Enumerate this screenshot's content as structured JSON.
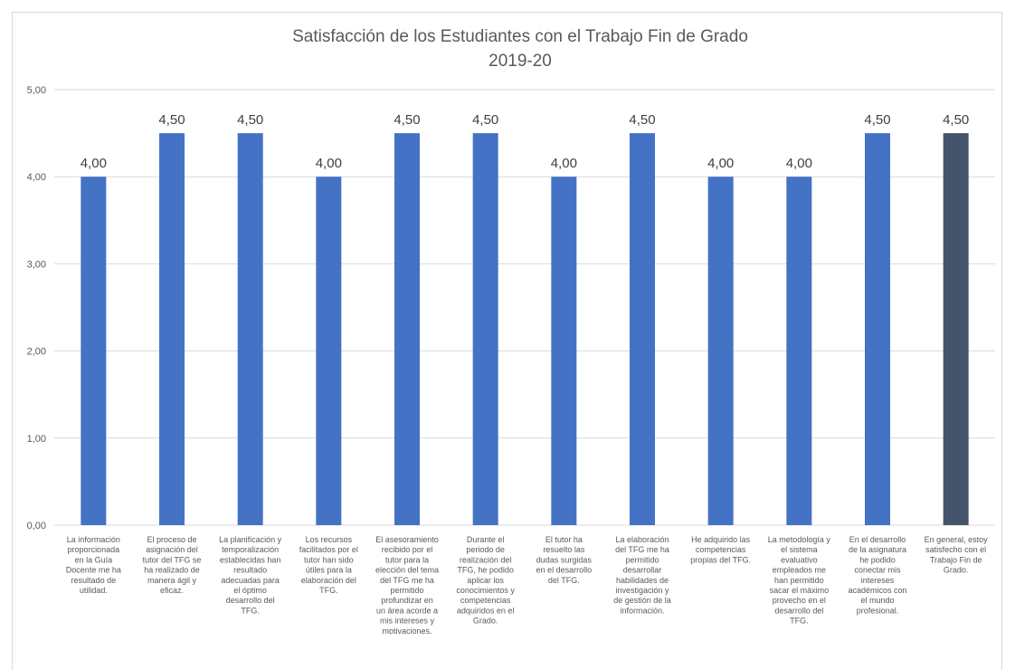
{
  "chart_data": {
    "type": "bar",
    "title": [
      "Satisfacción de los Estudiantes con el Trabajo Fin de Grado",
      "2019-20"
    ],
    "xlabel": "",
    "ylabel": "",
    "ylim": [
      0,
      5
    ],
    "yticks": [
      "0,00",
      "1,00",
      "2,00",
      "3,00",
      "4,00",
      "5,00"
    ],
    "grid": true,
    "legend": "none",
    "colors": {
      "bar": "#4472c4",
      "highlight": "#44546a",
      "grid": "#d9d9d9"
    },
    "highlight_index": 11,
    "categories": [
      "La información proporcionada en la Guía Docente me ha resultado de utilidad.",
      "El proceso de asignación del tutor del TFG se ha realizado de manera ágil y eficaz.",
      "La planificación y temporalización establecidas han resultado adecuadas para el óptimo desarrollo del TFG.",
      "Los recursos facilitados por el tutor han sido útiles para la elaboración del TFG.",
      "El asesoramiento recibido por el tutor para la elección del tema del TFG me ha permitido profundizar en un área acorde a mis intereses y motivaciones.",
      "Durante el periodo de realización del TFG, he podido aplicar los conocimientos y competencias adquiridos en el Grado.",
      "El tutor ha resuelto las dudas surgidas en el desarrollo del TFG.",
      "La elaboración del TFG me ha permitido desarrollar habilidades de investigación y de gestión de la información.",
      "He adquirido las competencias propias del TFG.",
      "La metodología y el sistema evaluativo empleados me han permitido sacar el máximo provecho en el desarrollo del TFG.",
      "En el desarrollo de la asignatura he podido conectar mis intereses académicos con el mundo profesional.",
      "En general, estoy satisfecho con el Trabajo Fin de Grado."
    ],
    "category_lines": [
      [
        "La información",
        "proporcionada",
        "en la Guía",
        "Docente me ha",
        "resultado de",
        "utilidad."
      ],
      [
        "El proceso de",
        "asignación del",
        "tutor del TFG se",
        "ha realizado de",
        "manera ágil y",
        "eficaz."
      ],
      [
        "La planificación y",
        "temporalización",
        "establecidas han",
        "resultado",
        "adecuadas para",
        "el óptimo",
        "desarrollo del",
        "TFG."
      ],
      [
        "Los recursos",
        "facilitados por el",
        "tutor han sido",
        "útiles para la",
        "elaboración del",
        "TFG."
      ],
      [
        "El asesoramiento",
        "recibido por el",
        "tutor para la",
        "elección del tema",
        "del TFG me ha",
        "permitido",
        "profundizar en",
        "un área acorde a",
        "mis intereses y",
        "motivaciones."
      ],
      [
        "Durante el",
        "periodo de",
        "realización del",
        "TFG, he podido",
        "aplicar los",
        "conocimientos y",
        "competencias",
        "adquiridos en el",
        "Grado."
      ],
      [
        "El tutor ha",
        "resuelto las",
        "dudas surgidas",
        "en el desarrollo",
        "del TFG."
      ],
      [
        "La elaboración",
        "del TFG me ha",
        "permitido",
        "desarrollar",
        "habilidades de",
        "investigación y",
        "de gestión de la",
        "información."
      ],
      [
        "He adquirido las",
        "competencias",
        "propias del TFG."
      ],
      [
        "La metodología y",
        "el sistema",
        "evaluativo",
        "empleados me",
        "han permitido",
        "sacar el máximo",
        "provecho en el",
        "desarrollo del",
        "TFG."
      ],
      [
        "En el desarrollo",
        "de la asignatura",
        "he podido",
        "conectar mis",
        "intereses",
        "académicos con",
        "el mundo",
        "profesional."
      ],
      [
        "En general, estoy",
        "satisfecho con el",
        "Trabajo Fin de",
        "Grado."
      ]
    ],
    "values": [
      4.0,
      4.5,
      4.5,
      4.0,
      4.5,
      4.5,
      4.0,
      4.5,
      4.0,
      4.0,
      4.5,
      4.5
    ],
    "value_labels": [
      "4,00",
      "4,50",
      "4,50",
      "4,00",
      "4,50",
      "4,50",
      "4,00",
      "4,50",
      "4,00",
      "4,00",
      "4,50",
      "4,50"
    ]
  }
}
